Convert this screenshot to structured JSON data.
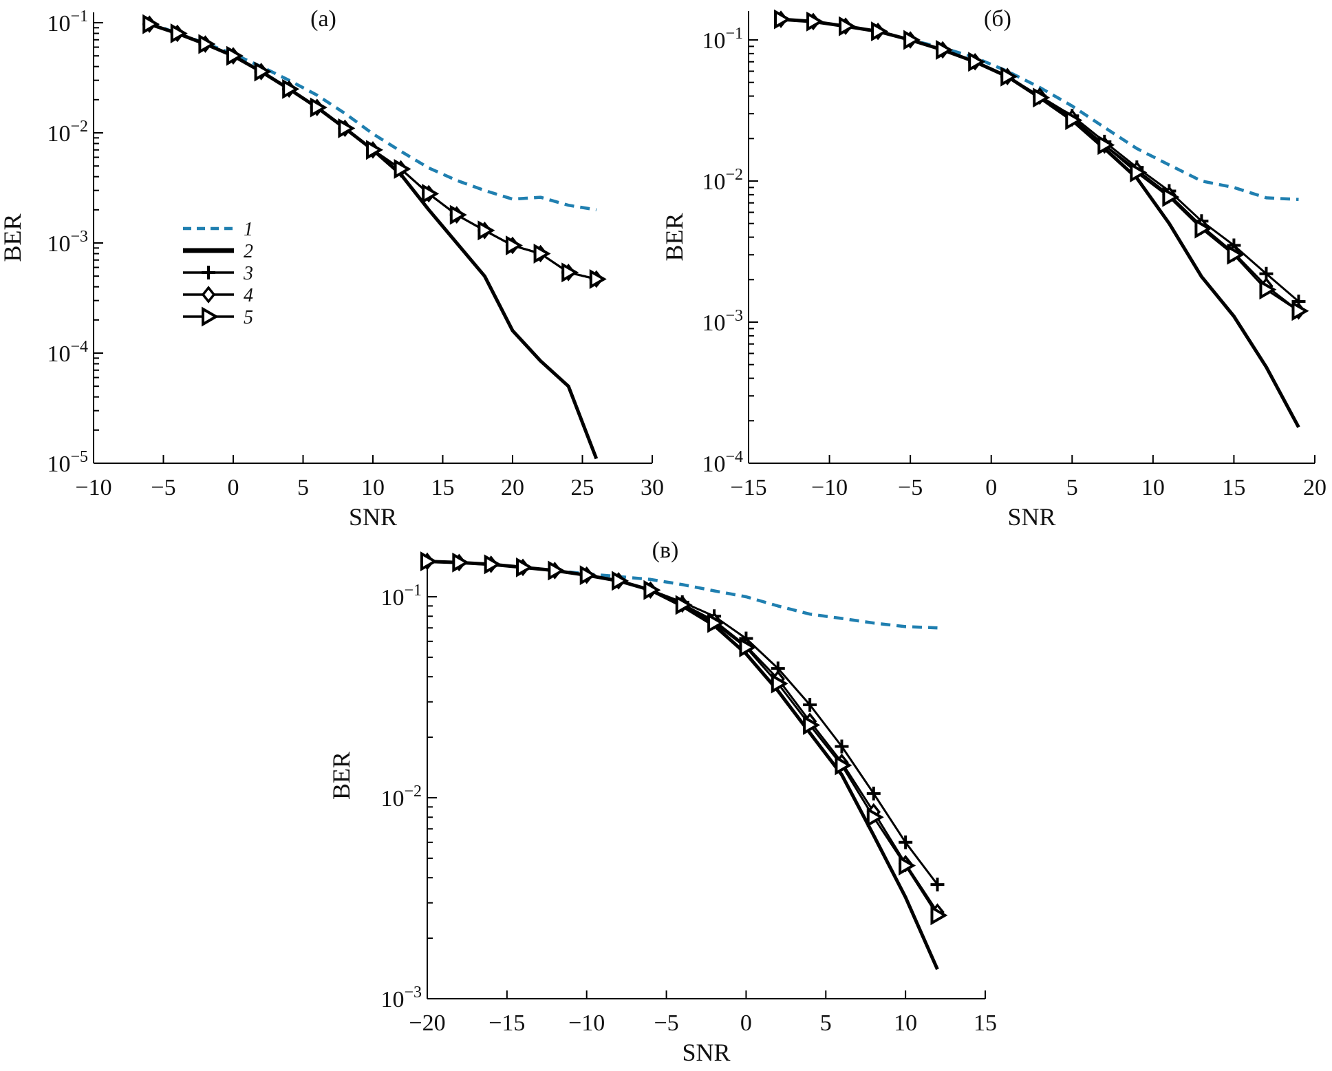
{
  "colors": {
    "series1": "#1f7fb0",
    "other_series": "#000000",
    "axes": "#000000"
  },
  "chart_data": [
    {
      "type": "line",
      "panel_label": "(a)",
      "xlabel": "SNR",
      "ylabel": "BER",
      "yscale": "log",
      "xlim": [
        -10,
        30
      ],
      "ylim": [
        1e-05,
        0.1
      ],
      "xticks": [
        "−10",
        "−5",
        "0",
        "5",
        "10",
        "15",
        "20",
        "25",
        "30"
      ],
      "xtick_values": [
        -10,
        -5,
        0,
        5,
        10,
        15,
        20,
        25,
        30
      ],
      "yticks": [
        {
          "base": "10",
          "exp": "−1"
        },
        {
          "base": "10",
          "exp": "−2"
        },
        {
          "base": "10",
          "exp": "−3"
        },
        {
          "base": "10",
          "exp": "−4"
        },
        {
          "base": "10",
          "exp": "−5"
        }
      ],
      "ytick_values": [
        0.1,
        0.01,
        0.001,
        0.0001,
        1e-05
      ],
      "legend": {
        "placement": "center-left",
        "entries": [
          "1",
          "2",
          "3",
          "4",
          "5"
        ]
      },
      "grid": false,
      "x": [
        -6,
        -4,
        -2,
        0,
        2,
        4,
        6,
        8,
        10,
        12,
        14,
        16,
        18,
        20,
        22,
        24,
        26
      ],
      "series": [
        {
          "name": "1",
          "style": "dashed",
          "marker": "none",
          "values": [
            0.1,
            0.08,
            0.065,
            0.052,
            0.04,
            0.03,
            0.022,
            0.015,
            0.0098,
            0.0068,
            0.0048,
            0.0037,
            0.003,
            0.0025,
            0.0026,
            0.0022,
            0.002
          ]
        },
        {
          "name": "2",
          "style": "solid-thick",
          "marker": "none",
          "values": [
            0.097,
            0.08,
            0.064,
            0.05,
            0.036,
            0.025,
            0.017,
            0.011,
            0.007,
            0.0042,
            0.002,
            0.001,
            0.0005,
            0.00016,
            8.5e-05,
            5e-05,
            1.1e-05
          ]
        },
        {
          "name": "3",
          "style": "solid",
          "marker": "plus",
          "values": [
            0.097,
            0.08,
            0.064,
            0.05,
            0.036,
            0.025,
            0.017,
            0.011,
            0.007,
            0.0047,
            0.0028,
            0.0018,
            0.0013,
            0.00095,
            0.0008,
            0.00054,
            0.00047
          ]
        },
        {
          "name": "4",
          "style": "solid",
          "marker": "diamond",
          "values": [
            0.097,
            0.08,
            0.064,
            0.05,
            0.036,
            0.025,
            0.017,
            0.011,
            0.007,
            0.0047,
            0.0028,
            0.0018,
            0.0013,
            0.00095,
            0.0008,
            0.00054,
            0.00047
          ]
        },
        {
          "name": "5",
          "style": "solid",
          "marker": "triangle-right",
          "values": [
            0.097,
            0.08,
            0.064,
            0.05,
            0.036,
            0.025,
            0.017,
            0.011,
            0.007,
            0.0047,
            0.0028,
            0.0018,
            0.0013,
            0.00095,
            0.0008,
            0.00054,
            0.00047
          ]
        }
      ]
    },
    {
      "type": "line",
      "panel_label": "(б)",
      "xlabel": "SNR",
      "ylabel": "BER",
      "yscale": "log",
      "xlim": [
        -15,
        20
      ],
      "ylim": [
        0.0001,
        0.14
      ],
      "xticks": [
        "−15",
        "−10",
        "−5",
        "0",
        "5",
        "10",
        "15",
        "20"
      ],
      "xtick_values": [
        -15,
        -10,
        -5,
        0,
        5,
        10,
        15,
        20
      ],
      "yticks": [
        {
          "base": "10",
          "exp": "−1"
        },
        {
          "base": "10",
          "exp": "−2"
        },
        {
          "base": "10",
          "exp": "−3"
        },
        {
          "base": "10",
          "exp": "−4"
        }
      ],
      "ytick_values": [
        0.1,
        0.01,
        0.001,
        0.0001
      ],
      "grid": false,
      "x": [
        -13,
        -11,
        -9,
        -7,
        -5,
        -3,
        -1,
        1,
        3,
        5,
        7,
        9,
        11,
        13,
        15,
        17,
        19
      ],
      "series": [
        {
          "name": "1",
          "style": "dashed",
          "marker": "none",
          "values": [
            0.14,
            0.135,
            0.125,
            0.115,
            0.1,
            0.088,
            0.075,
            0.06,
            0.046,
            0.034,
            0.024,
            0.017,
            0.013,
            0.01,
            0.009,
            0.0076,
            0.0074
          ]
        },
        {
          "name": "2",
          "style": "solid-thick",
          "marker": "none",
          "values": [
            0.14,
            0.135,
            0.125,
            0.115,
            0.1,
            0.085,
            0.07,
            0.055,
            0.039,
            0.027,
            0.017,
            0.0105,
            0.005,
            0.0021,
            0.0011,
            0.00048,
            0.00018
          ]
        },
        {
          "name": "3",
          "style": "solid",
          "marker": "plus",
          "values": [
            0.14,
            0.135,
            0.125,
            0.115,
            0.1,
            0.085,
            0.07,
            0.055,
            0.04,
            0.029,
            0.019,
            0.0125,
            0.0085,
            0.0052,
            0.0035,
            0.0022,
            0.0014
          ]
        },
        {
          "name": "4",
          "style": "solid",
          "marker": "diamond",
          "values": [
            0.14,
            0.135,
            0.125,
            0.115,
            0.1,
            0.085,
            0.07,
            0.055,
            0.04,
            0.028,
            0.018,
            0.012,
            0.008,
            0.0048,
            0.0031,
            0.0018,
            0.0012
          ]
        },
        {
          "name": "5",
          "style": "solid",
          "marker": "triangle-right",
          "values": [
            0.14,
            0.135,
            0.125,
            0.115,
            0.1,
            0.085,
            0.07,
            0.055,
            0.039,
            0.027,
            0.018,
            0.0115,
            0.0077,
            0.0046,
            0.003,
            0.0017,
            0.0012
          ]
        }
      ]
    },
    {
      "type": "line",
      "panel_label": "(в)",
      "xlabel": "SNR",
      "ylabel": "BER",
      "yscale": "log",
      "xlim": [
        -20,
        15
      ],
      "ylim": [
        0.001,
        0.16
      ],
      "xticks": [
        "−20",
        "−15",
        "−10",
        "−5",
        "0",
        "5",
        "10",
        "15"
      ],
      "xtick_values": [
        -20,
        -15,
        -10,
        -5,
        0,
        5,
        10,
        15
      ],
      "yticks": [
        {
          "base": "10",
          "exp": "−1"
        },
        {
          "base": "10",
          "exp": "−2"
        },
        {
          "base": "10",
          "exp": "−3"
        }
      ],
      "ytick_values": [
        0.1,
        0.01,
        0.001
      ],
      "grid": false,
      "x": [
        -20,
        -18,
        -16,
        -14,
        -12,
        -10,
        -8,
        -6,
        -4,
        -2,
        0,
        2,
        4,
        6,
        8,
        10,
        12
      ],
      "series": [
        {
          "name": "1",
          "style": "dashed",
          "marker": "none",
          "values": [
            0.15,
            0.148,
            0.145,
            0.14,
            0.135,
            0.13,
            0.126,
            0.122,
            0.115,
            0.107,
            0.1,
            0.09,
            0.082,
            0.078,
            0.074,
            0.071,
            0.07
          ]
        },
        {
          "name": "2",
          "style": "solid-thick",
          "marker": "none",
          "values": [
            0.15,
            0.148,
            0.145,
            0.14,
            0.135,
            0.128,
            0.12,
            0.108,
            0.09,
            0.072,
            0.052,
            0.034,
            0.021,
            0.013,
            0.0065,
            0.0032,
            0.0014
          ]
        },
        {
          "name": "3",
          "style": "solid",
          "marker": "plus",
          "values": [
            0.15,
            0.148,
            0.145,
            0.14,
            0.135,
            0.128,
            0.12,
            0.108,
            0.094,
            0.08,
            0.062,
            0.044,
            0.029,
            0.018,
            0.0105,
            0.006,
            0.0037
          ]
        },
        {
          "name": "4",
          "style": "solid",
          "marker": "diamond",
          "values": [
            0.15,
            0.148,
            0.145,
            0.14,
            0.135,
            0.128,
            0.12,
            0.108,
            0.092,
            0.076,
            0.057,
            0.039,
            0.024,
            0.015,
            0.0085,
            0.0047,
            0.0027
          ]
        },
        {
          "name": "5",
          "style": "solid",
          "marker": "triangle-right",
          "values": [
            0.15,
            0.148,
            0.145,
            0.14,
            0.135,
            0.128,
            0.12,
            0.108,
            0.091,
            0.074,
            0.056,
            0.037,
            0.023,
            0.0145,
            0.008,
            0.0046,
            0.0026
          ]
        }
      ]
    }
  ]
}
